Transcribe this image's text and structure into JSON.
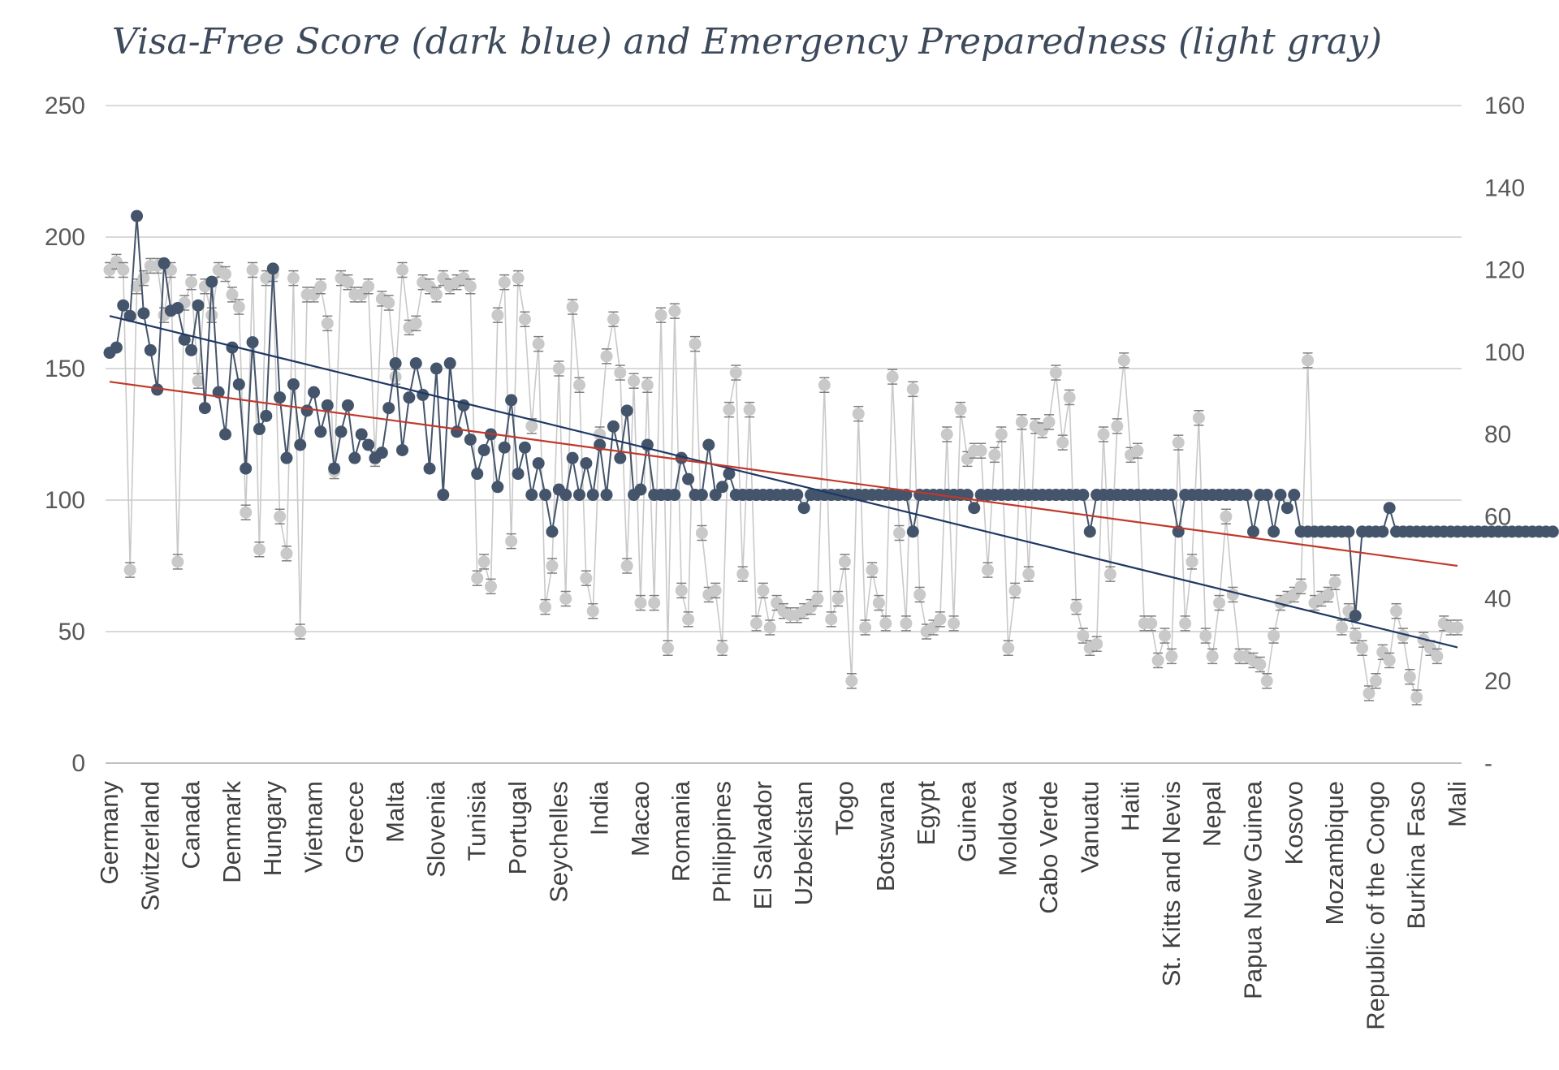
{
  "chart_data": {
    "type": "line",
    "title": "Visa-Free Score (dark blue) and Emergency Preparedness (light gray)",
    "xlabel": "",
    "ylabel_left": "",
    "ylabel_right": "",
    "ylim_left": [
      0,
      250
    ],
    "ylim_right": [
      0,
      160
    ],
    "yticks_left": [
      "0",
      "50",
      "100",
      "150",
      "200",
      "250"
    ],
    "yticks_right": [
      "-",
      "20",
      "40",
      "60",
      "80",
      "100",
      "120",
      "140",
      "160"
    ],
    "grid": true,
    "n_points": 199,
    "category_labels": [
      "Germany",
      "Switzerland",
      "Canada",
      "Denmark",
      "Hungary",
      "Vietnam",
      "Greece",
      "Malta",
      "Slovenia",
      "Tunisia",
      "Portugal",
      "Seychelles",
      "India",
      "Macao",
      "Romania",
      "Philippines",
      "El Salvador",
      "Uzbekistan",
      "Togo",
      "Botswana",
      "Egypt",
      "Guinea",
      "Moldova",
      "Cabo Verde",
      "Vanuatu",
      "Haiti",
      "St. Kitts and Nevis",
      "Nepal",
      "Papua New Guinea",
      "Kosovo",
      "Mozambique",
      "Republic of the Congo",
      "Burkina Faso",
      "Mali"
    ],
    "colors": {
      "visa_free": "#44546a",
      "preparedness": "#c9c9c9",
      "visa_trend": "#1f3864",
      "prep_trend": "#c0392b",
      "error_bar": "#7f7f7f"
    },
    "series": [
      {
        "name": "Visa-Free Score",
        "axis": "left",
        "values": [
          156,
          158,
          174,
          170,
          208,
          171,
          157,
          142,
          190,
          172,
          173,
          161,
          157,
          174,
          135,
          183,
          141,
          125,
          158,
          144,
          112,
          160,
          127,
          132,
          188,
          139,
          116,
          144,
          121,
          134,
          141,
          126,
          136,
          112,
          126,
          136,
          116,
          125,
          121,
          116,
          118,
          135,
          152,
          119,
          139,
          152,
          140,
          112,
          150,
          102,
          152,
          126,
          136,
          123,
          110,
          119,
          125,
          105,
          120,
          138,
          110,
          120,
          102,
          114,
          102,
          88,
          104,
          102,
          116,
          102,
          114,
          102,
          121,
          102,
          128,
          116,
          134,
          102,
          104,
          121,
          102,
          102,
          102,
          102,
          116,
          108,
          102,
          102,
          121,
          102,
          105,
          110,
          102,
          102,
          102,
          102,
          102,
          102,
          102,
          102,
          102,
          102,
          97,
          102,
          102,
          102,
          102,
          102,
          102,
          102,
          102,
          102,
          102,
          102,
          102,
          102,
          102,
          102,
          88,
          102,
          102,
          102,
          102,
          102,
          102,
          102,
          102,
          97,
          102,
          102,
          102,
          102,
          102,
          102,
          102,
          102,
          102,
          102,
          102,
          102,
          102,
          102,
          102,
          102,
          88,
          102,
          102,
          102,
          102,
          102,
          102,
          102,
          102,
          102,
          102,
          102,
          102,
          88,
          102,
          102,
          102,
          102,
          102,
          102,
          102,
          102,
          102,
          102,
          88,
          102,
          102,
          88,
          102,
          97,
          102,
          88,
          88,
          88,
          88,
          88,
          88,
          88,
          88,
          56,
          88,
          88,
          88,
          88,
          97,
          88,
          88,
          88,
          88,
          88,
          88,
          88,
          88,
          88,
          88,
          88,
          88,
          88,
          88,
          88,
          88,
          88,
          88,
          88,
          88,
          88,
          88,
          88,
          88
        ]
      },
      {
        "name": "Emergency Preparedness",
        "axis": "right",
        "values": [
          120,
          122,
          120,
          47,
          116,
          118,
          121,
          121,
          109,
          120,
          49,
          112,
          117,
          93,
          116,
          109,
          120,
          119,
          114,
          111,
          61,
          120,
          52,
          118,
          119,
          60,
          51,
          118,
          32,
          114,
          114,
          116,
          107,
          71,
          118,
          117,
          114,
          114,
          116,
          74,
          113,
          112,
          94,
          120,
          106,
          107,
          117,
          116,
          114,
          118,
          116,
          117,
          118,
          116,
          45,
          49,
          43,
          109,
          117,
          54,
          118,
          108,
          82,
          102,
          38,
          48,
          96,
          40,
          111,
          92,
          45,
          37,
          80,
          99,
          108,
          95,
          48,
          93,
          39,
          92,
          39,
          109,
          28,
          110,
          42,
          35,
          102,
          56,
          41,
          42,
          28,
          86,
          95,
          46,
          86,
          34,
          42,
          33,
          39,
          37,
          36,
          36,
          37,
          38,
          40,
          92,
          35,
          40,
          49,
          20,
          85,
          33,
          47,
          39,
          34,
          94,
          56,
          34,
          91,
          41,
          32,
          33,
          35,
          80,
          34,
          86,
          74,
          76,
          76,
          47,
          75,
          80,
          28,
          42,
          83,
          46,
          82,
          81,
          83,
          95,
          78,
          89,
          38,
          31,
          28,
          29,
          80,
          46,
          82,
          98,
          75,
          76,
          34,
          34,
          25,
          31,
          26,
          78,
          34,
          49,
          84,
          31,
          26,
          39,
          60,
          41,
          26,
          26,
          25,
          24,
          20,
          31,
          39,
          40,
          41,
          43,
          98,
          39,
          40,
          41,
          44,
          33,
          37,
          31,
          28,
          17,
          20,
          27,
          25,
          37,
          31,
          21,
          16,
          30,
          28,
          26,
          34,
          33,
          33
        ]
      }
    ],
    "trendlines": [
      {
        "name": "Visa-Free trend",
        "axis": "left",
        "start": 170,
        "end": 44
      },
      {
        "name": "Preparedness trend",
        "axis": "left",
        "start": 145,
        "end": 75
      }
    ]
  }
}
